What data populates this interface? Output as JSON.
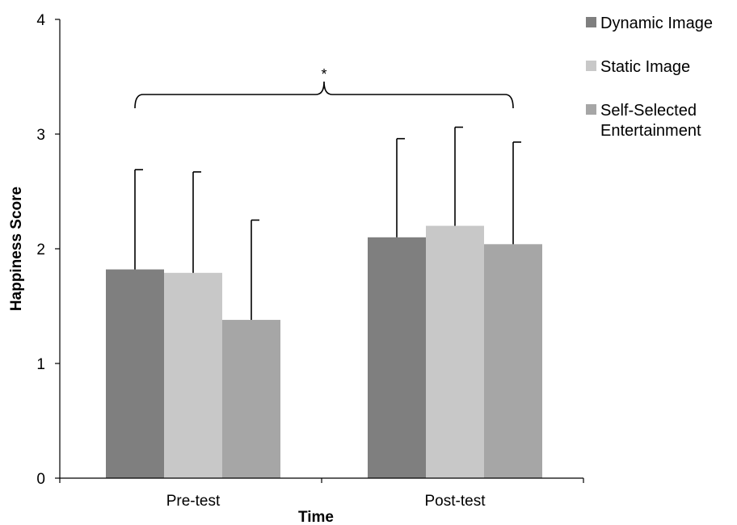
{
  "chart_data": {
    "type": "bar",
    "xlabel": "Time",
    "ylabel": "Happiness Score",
    "ylim": [
      0,
      4
    ],
    "yticks": [
      0,
      1,
      2,
      3,
      4
    ],
    "categories": [
      "Pre-test",
      "Post-test"
    ],
    "series": [
      {
        "name": "Dynamic Image",
        "values": [
          1.82,
          2.1
        ],
        "error_upper": [
          2.69,
          2.96
        ],
        "color": "#7f7f7f"
      },
      {
        "name": "Static Image",
        "values": [
          1.79,
          2.2
        ],
        "error_upper": [
          2.67,
          3.06
        ],
        "color": "#c8c8c8"
      },
      {
        "name": "Self-Selected Entertainment",
        "values": [
          1.38,
          2.04
        ],
        "error_upper": [
          2.25,
          2.93
        ],
        "color": "#a6a6a6"
      }
    ],
    "annotations": [
      {
        "text": "*",
        "type": "significance-bracket",
        "between": [
          "Pre-test",
          "Post-test"
        ]
      }
    ],
    "legend_position": "top-right",
    "grid": false
  }
}
